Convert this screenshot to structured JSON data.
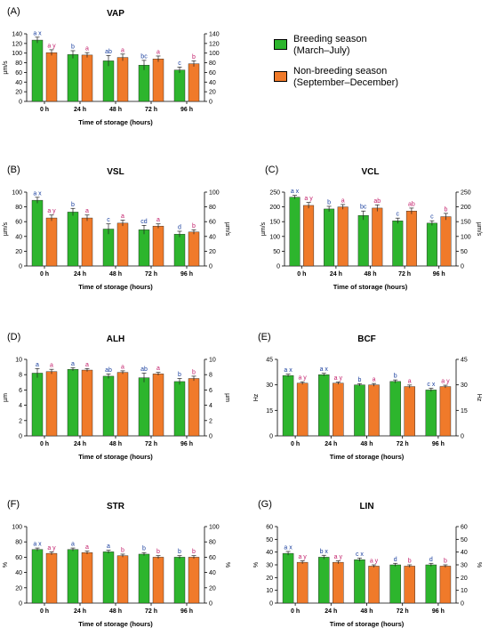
{
  "colors": {
    "breeding": "#2db52d",
    "nonbreeding": "#f07a2a",
    "axis": "#000000",
    "letter_breeding": "#1a3f9e",
    "letter_nonbreeding": "#c21e6a"
  },
  "legend": {
    "breeding_line1": "Breeding season",
    "breeding_line2": "(March–July)",
    "nonbreeding_line1": "Non-breeding season",
    "nonbreeding_line2": "(September–December)"
  },
  "chart_data": [
    {
      "type": "bar",
      "panel": "(A)",
      "title": "VAP",
      "ylabel": "µm/s",
      "ylabel_right": "",
      "xlabel": "Time of storage (hours)",
      "categories": [
        "0 h",
        "24 h",
        "48 h",
        "72 h",
        "96 h"
      ],
      "ylim": [
        0,
        140
      ],
      "yticks": [
        0,
        20,
        40,
        60,
        80,
        100,
        120,
        140
      ],
      "series": [
        {
          "name": "Breeding season (March–July)",
          "values": [
            127,
            97,
            84,
            75,
            65
          ],
          "errors": [
            6,
            8,
            11,
            10,
            6
          ],
          "labels": [
            "a x",
            "b",
            "ab",
            "bc",
            "c"
          ]
        },
        {
          "name": "Non-breeding season (September–December)",
          "values": [
            101,
            96,
            91,
            88,
            78
          ],
          "errors": [
            6,
            5,
            7,
            6,
            6
          ],
          "labels": [
            "a y",
            "a",
            "a",
            "a",
            "b"
          ]
        }
      ]
    },
    {
      "type": "bar",
      "panel": "(B)",
      "title": "VSL",
      "ylabel": "µm/s",
      "ylabel_right": "µm/s",
      "xlabel": "Time of storage (hours)",
      "categories": [
        "0 h",
        "24 h",
        "48 h",
        "72 h",
        "96 h"
      ],
      "ylim": [
        0,
        100
      ],
      "yticks": [
        0,
        20,
        40,
        60,
        80,
        100
      ],
      "series": [
        {
          "name": "Breeding season (March–July)",
          "values": [
            89,
            73,
            50,
            49,
            43
          ],
          "errors": [
            4,
            5,
            7,
            6,
            4
          ],
          "labels": [
            "a x",
            "b",
            "c",
            "cd",
            "d"
          ]
        },
        {
          "name": "Non-breeding season (September–December)",
          "values": [
            65,
            65,
            58,
            54,
            46
          ],
          "errors": [
            4,
            4,
            4,
            3,
            3
          ],
          "labels": [
            "a y",
            "a",
            "a",
            "a",
            "b"
          ]
        }
      ]
    },
    {
      "type": "bar",
      "panel": "(C)",
      "title": "VCL",
      "ylabel": "µm/s",
      "ylabel_right": "µm/s",
      "xlabel": "Time of storage (hours)",
      "categories": [
        "0 h",
        "24 h",
        "48 h",
        "72 h",
        "96 h"
      ],
      "ylim": [
        0,
        250
      ],
      "yticks": [
        0,
        50,
        100,
        150,
        200,
        250
      ],
      "series": [
        {
          "name": "Breeding season (March–July)",
          "values": [
            233,
            193,
            171,
            153,
            145
          ],
          "errors": [
            6,
            9,
            15,
            9,
            8
          ],
          "labels": [
            "a x",
            "b",
            "bc",
            "c",
            "c"
          ]
        },
        {
          "name": "Non-breeding season (September–December)",
          "values": [
            205,
            200,
            196,
            186,
            167
          ],
          "errors": [
            10,
            8,
            11,
            10,
            11
          ],
          "labels": [
            "a y",
            "a",
            "ab",
            "ab",
            "b"
          ]
        }
      ]
    },
    {
      "type": "bar",
      "panel": "(D)",
      "title": "ALH",
      "ylabel": "µm",
      "ylabel_right": "µm",
      "xlabel": "Time of storage (hours)",
      "categories": [
        "0 h",
        "24 h",
        "48 h",
        "72 h",
        "96 h"
      ],
      "ylim": [
        0,
        10
      ],
      "yticks": [
        0,
        2,
        4,
        6,
        8,
        10
      ],
      "series": [
        {
          "name": "Breeding season (March–July)",
          "values": [
            8.2,
            8.7,
            7.8,
            7.6,
            7.1
          ],
          "errors": [
            0.6,
            0.2,
            0.3,
            0.6,
            0.4
          ],
          "labels": [
            "a",
            "a",
            "ab",
            "ab",
            "b"
          ]
        },
        {
          "name": "Non-breeding season (September–December)",
          "values": [
            8.4,
            8.6,
            8.3,
            8.1,
            7.5
          ],
          "errors": [
            0.3,
            0.2,
            0.2,
            0.2,
            0.3
          ],
          "labels": [
            "a",
            "a",
            "a",
            "a",
            "b"
          ]
        }
      ]
    },
    {
      "type": "bar",
      "panel": "(E)",
      "title": "BCF",
      "ylabel": "Hz",
      "ylabel_right": "Hz",
      "xlabel": "Time of storage (hours)",
      "categories": [
        "0 h",
        "24 h",
        "48 h",
        "72 h",
        "96 h"
      ],
      "ylim": [
        0,
        45
      ],
      "yticks": [
        0,
        15,
        30,
        45
      ],
      "series": [
        {
          "name": "Breeding season (March–July)",
          "values": [
            35.5,
            36,
            30,
            32,
            27
          ],
          "errors": [
            0.8,
            0.8,
            0.7,
            0.9,
            1.0
          ],
          "labels": [
            "a x",
            "a x",
            "b",
            "b",
            "c x"
          ]
        },
        {
          "name": "Non-breeding season (September–December)",
          "values": [
            31,
            31,
            30,
            29,
            29
          ],
          "errors": [
            0.8,
            0.7,
            0.8,
            0.9,
            0.8
          ],
          "labels": [
            "a y",
            "a y",
            "a",
            "a",
            "a y"
          ]
        }
      ]
    },
    {
      "type": "bar",
      "panel": "(F)",
      "title": "STR",
      "ylabel": "%",
      "ylabel_right": "%",
      "xlabel": "Time of storage (hours)",
      "categories": [
        "0 h",
        "24 h",
        "48 h",
        "72 h",
        "96 h"
      ],
      "ylim": [
        0,
        100
      ],
      "yticks": [
        0,
        20,
        40,
        60,
        80,
        100
      ],
      "series": [
        {
          "name": "Breeding season (March–July)",
          "values": [
            70,
            70,
            67,
            64,
            60
          ],
          "errors": [
            2,
            2,
            2,
            2,
            2
          ],
          "labels": [
            "a x",
            "a",
            "a",
            "b",
            "b"
          ]
        },
        {
          "name": "Non-breeding season (September–December)",
          "values": [
            65,
            66,
            62,
            60,
            60
          ],
          "errors": [
            2,
            2,
            2,
            2,
            2
          ],
          "labels": [
            "a y",
            "a",
            "b",
            "b",
            "b"
          ]
        }
      ]
    },
    {
      "type": "bar",
      "panel": "(G)",
      "title": "LIN",
      "ylabel": "%",
      "ylabel_right": "%",
      "xlabel": "Time of storage (hours)",
      "categories": [
        "0 h",
        "24 h",
        "48 h",
        "72 h",
        "96 h"
      ],
      "ylim": [
        0,
        60
      ],
      "yticks": [
        0,
        10,
        20,
        30,
        40,
        50,
        60
      ],
      "series": [
        {
          "name": "Breeding season (March–July)",
          "values": [
            39,
            36,
            34,
            30,
            30
          ],
          "errors": [
            1.5,
            1.5,
            1.3,
            1.2,
            1.2
          ],
          "labels": [
            "a x",
            "b x",
            "c x",
            "d",
            "d"
          ]
        },
        {
          "name": "Non-breeding season (September–December)",
          "values": [
            32,
            32,
            29,
            29,
            29
          ],
          "errors": [
            1.2,
            1.2,
            1.0,
            1.0,
            1.0
          ],
          "labels": [
            "a y",
            "a y",
            "a y",
            "b",
            "b"
          ]
        }
      ]
    }
  ]
}
